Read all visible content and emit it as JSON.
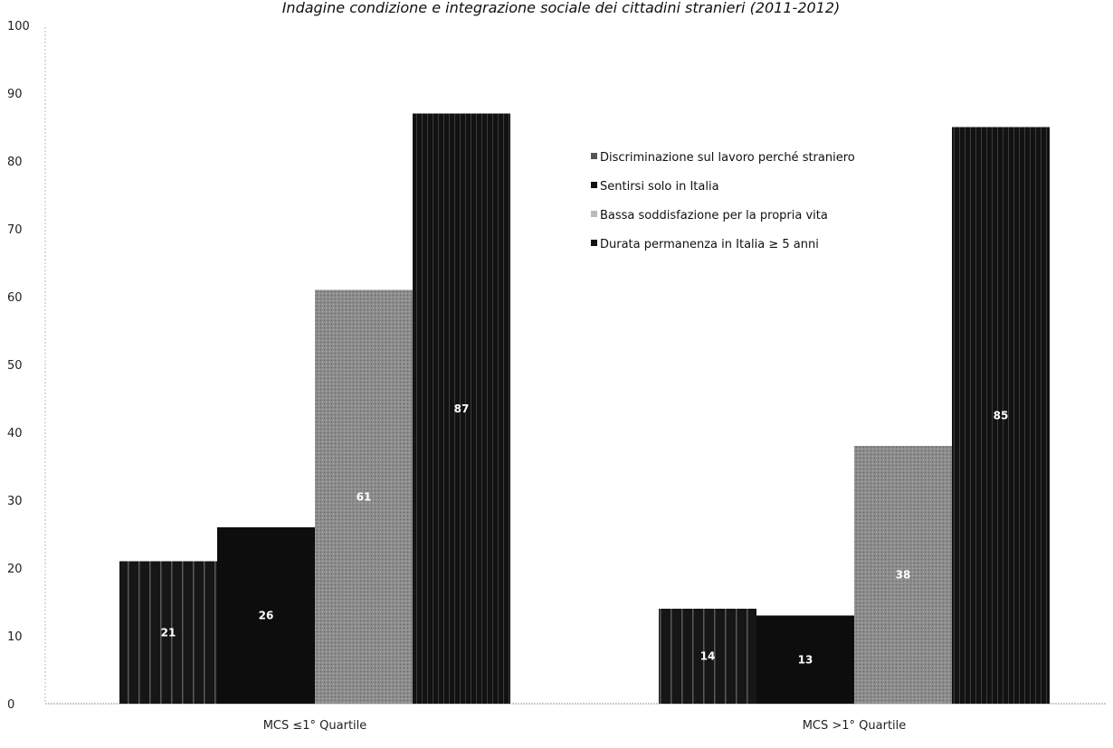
{
  "chart_data": {
    "type": "bar",
    "title": "Indagine condizione e integrazione sociale dei cittadini stranieri (2011-2012)",
    "categories": [
      "MCS ≤1° Quartile",
      "MCS >1° Quartile"
    ],
    "series": [
      {
        "name": "Discriminazione sul lavoro perché straniero",
        "values": [
          21,
          14
        ],
        "labels": [
          "21",
          "14"
        ],
        "color": "#1a1a1a"
      },
      {
        "name": "Sentirsi solo in Italia",
        "values": [
          26,
          13
        ],
        "labels": [
          "26",
          "13"
        ],
        "color": "#0d0d0d"
      },
      {
        "name": "Bassa soddisfazione per la propria vita",
        "values": [
          61,
          38
        ],
        "labels": [
          "61",
          "38"
        ],
        "color": "#8a8a8a"
      },
      {
        "name": "Durata permanenza in Italia ≥ 5 anni",
        "values": [
          87,
          85
        ],
        "labels": [
          "87",
          "85"
        ],
        "color": "#121212"
      }
    ],
    "ylim": [
      0,
      100
    ],
    "yticks": [
      "0",
      "10",
      "20",
      "30",
      "40",
      "50",
      "60",
      "70",
      "80",
      "90",
      "100"
    ],
    "legend_position": "top-right",
    "grid": false
  }
}
